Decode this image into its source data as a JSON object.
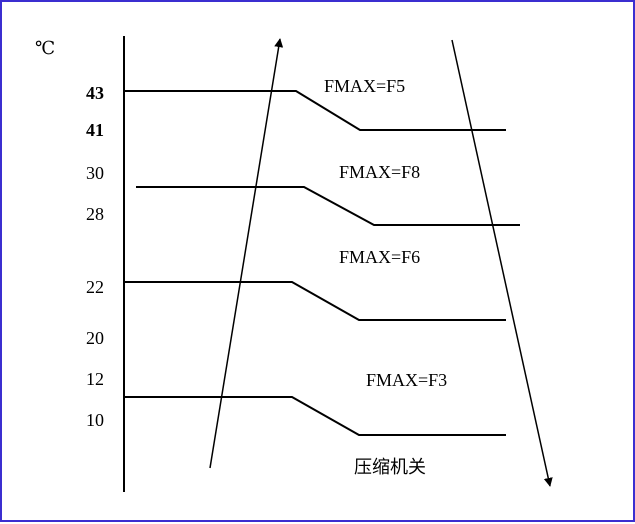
{
  "unit_label": "℃",
  "temperature_ticks": [
    {
      "label": "43",
      "bold": true
    },
    {
      "label": "41",
      "bold": true
    },
    {
      "label": "30",
      "bold": false
    },
    {
      "label": "28",
      "bold": false
    },
    {
      "label": "22",
      "bold": false
    },
    {
      "label": "20",
      "bold": false
    },
    {
      "label": "12",
      "bold": false
    },
    {
      "label": "10",
      "bold": false
    }
  ],
  "zone_labels": [
    "FMAX=F5",
    "FMAX=F8",
    "FMAX=F6",
    "FMAX=F3"
  ],
  "off_label": "压缩机关",
  "colors": {
    "border": "#3b2ed0",
    "line": "#000000"
  }
}
